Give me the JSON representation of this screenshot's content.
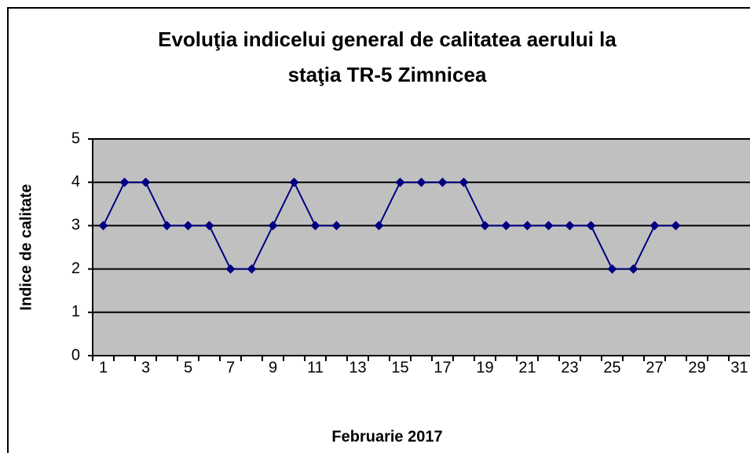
{
  "chart_data": {
    "type": "line",
    "title": [
      "Evoluţia indicelui general de calitatea aerului la",
      "staţia TR-5 Zimnicea"
    ],
    "x_label": "Februarie 2017",
    "y_label": "Indice de calitate",
    "categories": [
      1,
      null,
      3,
      null,
      5,
      null,
      7,
      null,
      9,
      null,
      11,
      null,
      13,
      null,
      15,
      null,
      17,
      null,
      19,
      null,
      21,
      null,
      23,
      null,
      25,
      null,
      27,
      null,
      29,
      null,
      31
    ],
    "series": [
      {
        "name": "Indice",
        "color": "#000080",
        "values": [
          3,
          4,
          4,
          3,
          3,
          3,
          2,
          2,
          3,
          4,
          3,
          3,
          null,
          3,
          4,
          4,
          4,
          4,
          3,
          3,
          3,
          3,
          3,
          3,
          2,
          2,
          3,
          3,
          null,
          null,
          null
        ]
      }
    ],
    "ylim": [
      0,
      5
    ],
    "yticks": [
      0,
      1,
      2,
      3,
      4,
      5
    ],
    "grid": true,
    "plot_background": "#c0c0c0"
  }
}
